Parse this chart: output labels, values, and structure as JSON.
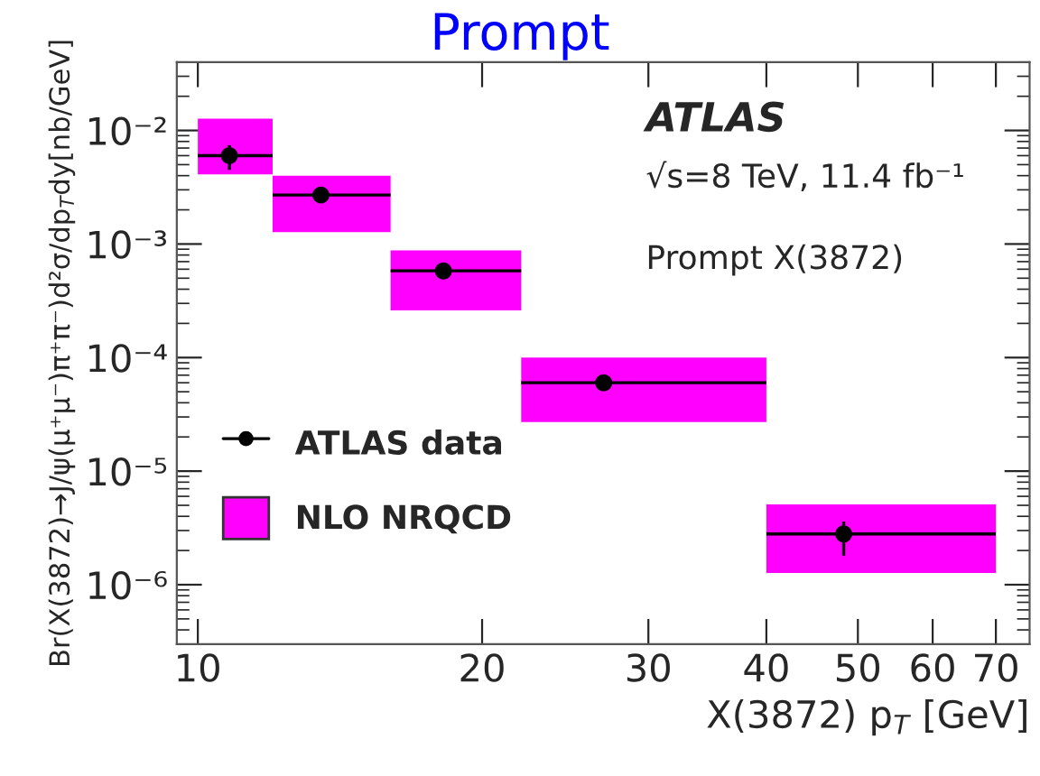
{
  "chart_data": {
    "type": "scatter",
    "title": "Prompt",
    "xlabel": "X(3872) p$_{T}$ [GeV]",
    "ylabel": "Br(X(3872)→J/ψ(μ⁺μ⁻)π⁺π⁻)d²σ/dp$_{T}$dy[nb/GeV]",
    "annotations": [
      "ATLAS",
      "√s=8 TeV, 11.4 fb⁻¹",
      "Prompt X(3872)"
    ],
    "log": "xy",
    "xlim": [
      9.5,
      76
    ],
    "ylim": [
      3e-07,
      0.04
    ],
    "xticks": [
      10,
      20,
      30,
      40,
      50,
      60,
      70
    ],
    "yticks": [
      {
        "value": 1e-06,
        "label": "10⁻⁶"
      },
      {
        "value": 1e-05,
        "label": "10⁻⁵"
      },
      {
        "value": 0.0001,
        "label": "10⁻⁴"
      },
      {
        "value": 0.001,
        "label": "10⁻³"
      },
      {
        "value": 0.01,
        "label": "10⁻²"
      }
    ],
    "grid": false,
    "legend": "bottom left",
    "series": [
      {
        "name": "NLO NRQCD",
        "type": "histogram",
        "color": "#ff00ff",
        "bins": [
          10,
          12,
          16,
          22,
          40,
          70
        ],
        "base": [
          0.0041,
          0.00127,
          0.00026,
          2.7e-05,
          1.27e-06
        ],
        "values": [
          0.0086,
          0.00273,
          0.00062,
          7.3e-05,
          3.83e-06
        ]
      },
      {
        "name": "ATLAS data",
        "color": "#000000",
        "marker": "circle",
        "x": [
          10.8,
          13.5,
          18.2,
          26.9,
          48.3
        ],
        "values": [
          0.006,
          0.0027,
          0.00058,
          6e-05,
          2.8e-06
        ],
        "xerrors": [
          [
            10,
            12
          ],
          [
            12,
            16
          ],
          [
            16,
            22
          ],
          [
            22,
            40
          ],
          [
            40,
            70
          ]
        ],
        "errors": [
          [
            0.0045,
            0.0074
          ],
          null,
          null,
          null,
          [
            1.8e-06,
            3.6e-06
          ]
        ]
      }
    ]
  }
}
